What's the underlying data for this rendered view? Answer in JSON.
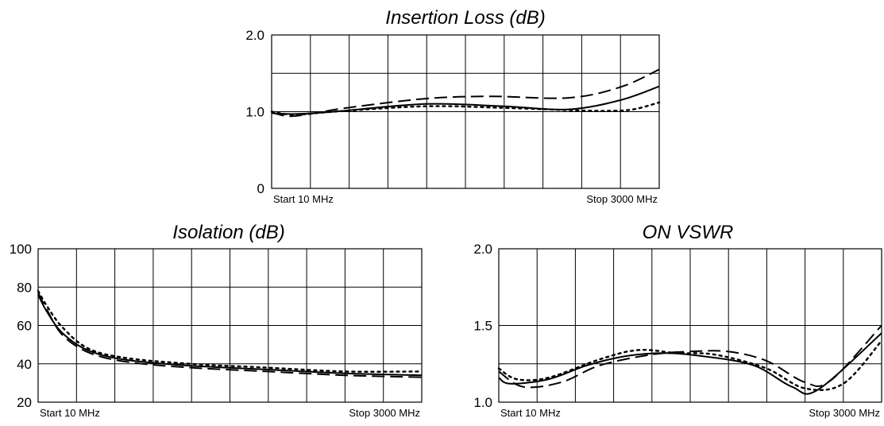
{
  "chart_data": [
    {
      "type": "line",
      "title": "Insertion Loss (dB)",
      "xlabel": "",
      "ylabel": "",
      "start_label": "Start 10 MHz",
      "stop_label": "Stop 3000 MHz",
      "xlim": [
        10,
        3000
      ],
      "ylim": [
        0,
        2.0
      ],
      "y_tick_labels": [
        "2.0",
        "1.0",
        "0"
      ],
      "y_tick_values": [
        2.0,
        1.0,
        0
      ],
      "y_gridlines": [
        1.0,
        1.5
      ],
      "x_gridline_count": 10,
      "series": [
        {
          "style": "solid",
          "x": [
            10,
            190,
            490,
            1200,
            1800,
            2300,
            2700,
            3000
          ],
          "y": [
            0.98,
            0.97,
            1.0,
            1.1,
            1.07,
            1.03,
            1.15,
            1.33
          ]
        },
        {
          "style": "dashed",
          "x": [
            10,
            150,
            340,
            590,
            1200,
            1700,
            2300,
            2700,
            3000
          ],
          "y": [
            0.99,
            0.94,
            0.98,
            1.05,
            1.17,
            1.2,
            1.18,
            1.32,
            1.55
          ]
        },
        {
          "style": "dotted",
          "x": [
            10,
            190,
            490,
            1200,
            1800,
            2300,
            2600,
            2800,
            3000
          ],
          "y": [
            1.0,
            0.96,
            1.0,
            1.07,
            1.05,
            1.02,
            1.01,
            1.03,
            1.12
          ]
        }
      ]
    },
    {
      "type": "line",
      "title": "Isolation (dB)",
      "xlabel": "",
      "ylabel": "",
      "start_label": "Start 10 MHz",
      "stop_label": "Stop 3000 MHz",
      "xlim": [
        10,
        3000
      ],
      "ylim": [
        20,
        100
      ],
      "y_tick_labels": [
        "100",
        "80",
        "60",
        "40",
        "20"
      ],
      "y_tick_values": [
        100,
        80,
        60,
        40,
        20
      ],
      "y_gridlines": [
        40,
        60,
        80
      ],
      "x_gridline_count": 10,
      "series": [
        {
          "style": "solid",
          "x": [
            10,
            80,
            200,
            400,
            700,
            1200,
            1800,
            2400,
            3000
          ],
          "y": [
            76,
            67,
            56,
            47,
            42,
            39,
            37,
            35,
            34
          ]
        },
        {
          "style": "dashed",
          "x": [
            10,
            80,
            200,
            400,
            700,
            1200,
            1800,
            2400,
            3000
          ],
          "y": [
            77,
            68,
            55,
            46,
            41,
            38,
            36,
            34,
            33
          ]
        },
        {
          "style": "dotted",
          "x": [
            10,
            80,
            200,
            400,
            700,
            1200,
            1800,
            2400,
            3000
          ],
          "y": [
            78,
            70,
            59,
            48,
            43,
            40,
            38,
            36,
            36
          ]
        }
      ]
    },
    {
      "type": "line",
      "title": "ON VSWR",
      "xlabel": "",
      "ylabel": "",
      "start_label": "Start 10 MHz",
      "stop_label": "Stop 3000 MHz",
      "xlim": [
        10,
        3000
      ],
      "ylim": [
        1.0,
        2.0
      ],
      "y_tick_labels": [
        "2.0",
        "1.5",
        "1.0"
      ],
      "y_tick_values": [
        2.0,
        1.5,
        1.0
      ],
      "y_gridlines": [
        1.25,
        1.5
      ],
      "x_gridline_count": 10,
      "series": [
        {
          "style": "solid",
          "x": [
            10,
            100,
            400,
            700,
            1000,
            1300,
            1600,
            2000,
            2300,
            2500,
            3000
          ],
          "y": [
            1.16,
            1.12,
            1.15,
            1.24,
            1.3,
            1.32,
            1.3,
            1.24,
            1.1,
            1.08,
            1.45
          ]
        },
        {
          "style": "dashed",
          "x": [
            10,
            200,
            500,
            800,
            1200,
            1500,
            1800,
            2100,
            2400,
            2600,
            3000
          ],
          "y": [
            1.2,
            1.1,
            1.13,
            1.24,
            1.31,
            1.33,
            1.33,
            1.27,
            1.13,
            1.14,
            1.5
          ]
        },
        {
          "style": "dotted",
          "x": [
            10,
            150,
            400,
            800,
            1100,
            1400,
            1700,
            2100,
            2400,
            2700,
            3000
          ],
          "y": [
            1.22,
            1.15,
            1.16,
            1.28,
            1.34,
            1.32,
            1.31,
            1.22,
            1.09,
            1.12,
            1.4
          ]
        }
      ]
    }
  ]
}
